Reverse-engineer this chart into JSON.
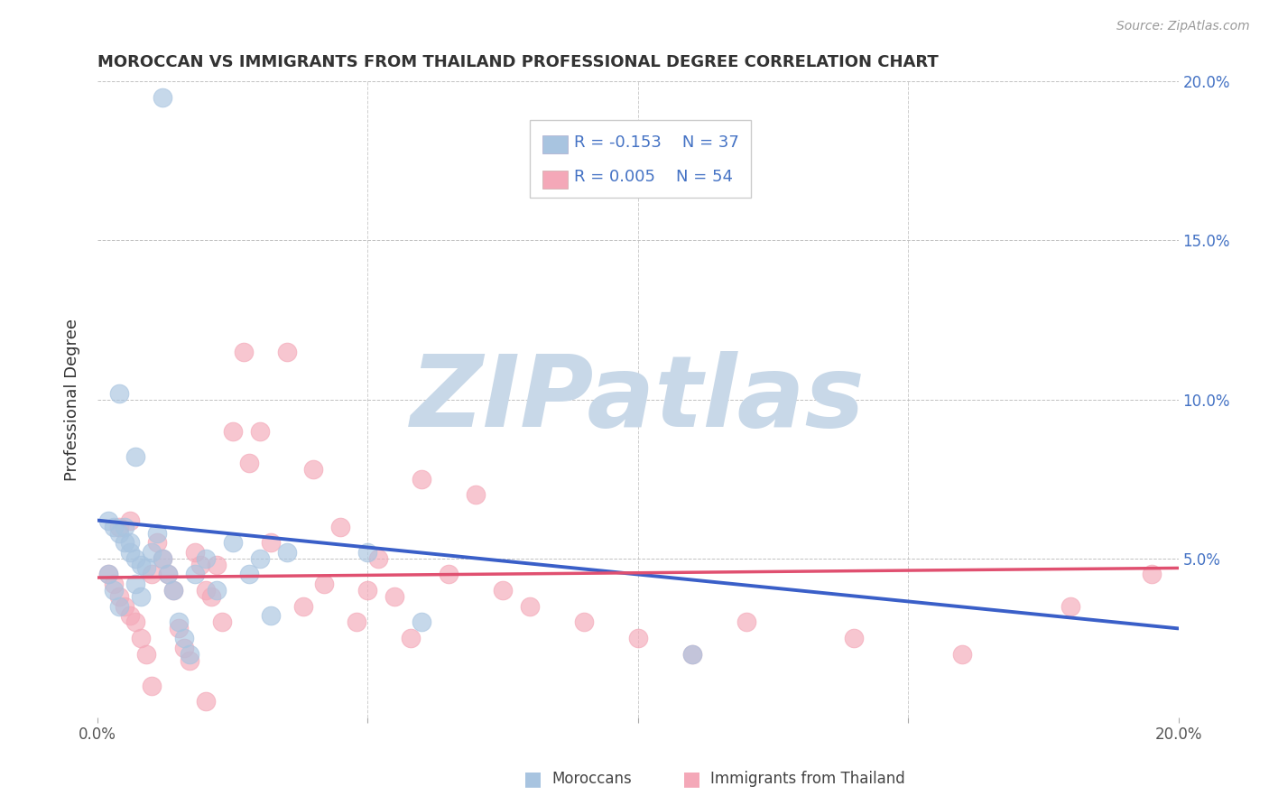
{
  "title": "MOROCCAN VS IMMIGRANTS FROM THAILAND PROFESSIONAL DEGREE CORRELATION CHART",
  "source": "Source: ZipAtlas.com",
  "ylabel": "Professional Degree",
  "xlim": [
    0,
    0.2
  ],
  "ylim": [
    0,
    0.2
  ],
  "xticks": [
    0.0,
    0.05,
    0.1,
    0.15,
    0.2
  ],
  "yticks": [
    0.0,
    0.05,
    0.1,
    0.15,
    0.2
  ],
  "xtick_labels_show": [
    "0.0%",
    "",
    "",
    "",
    "20.0%"
  ],
  "ytick_labels_right": [
    "",
    "5.0%",
    "10.0%",
    "15.0%",
    "20.0%"
  ],
  "moroccan_color": "#a8c4e0",
  "thailand_color": "#f4a8b8",
  "moroccan_R": -0.153,
  "moroccan_N": 37,
  "thailand_R": 0.005,
  "thailand_N": 54,
  "trend_blue_color": "#3a5fc8",
  "trend_pink_color": "#e05070",
  "trend_blue_x0": 0.0,
  "trend_blue_y0": 0.062,
  "trend_blue_x1": 0.2,
  "trend_blue_y1": 0.028,
  "trend_pink_x0": 0.0,
  "trend_pink_y0": 0.044,
  "trend_pink_x1": 0.2,
  "trend_pink_y1": 0.047,
  "watermark": "ZIPatlas",
  "watermark_color": "#c8d8e8",
  "moroccan_x": [
    0.002,
    0.003,
    0.004,
    0.005,
    0.006,
    0.007,
    0.008,
    0.009,
    0.01,
    0.011,
    0.012,
    0.013,
    0.014,
    0.015,
    0.016,
    0.017,
    0.018,
    0.02,
    0.022,
    0.025,
    0.028,
    0.03,
    0.032,
    0.035,
    0.002,
    0.003,
    0.004,
    0.005,
    0.006,
    0.007,
    0.008,
    0.05,
    0.06,
    0.11,
    0.004,
    0.007,
    0.012
  ],
  "moroccan_y": [
    0.062,
    0.06,
    0.058,
    0.055,
    0.052,
    0.05,
    0.048,
    0.047,
    0.052,
    0.058,
    0.05,
    0.045,
    0.04,
    0.03,
    0.025,
    0.02,
    0.045,
    0.05,
    0.04,
    0.055,
    0.045,
    0.05,
    0.032,
    0.052,
    0.045,
    0.04,
    0.035,
    0.06,
    0.055,
    0.042,
    0.038,
    0.052,
    0.03,
    0.02,
    0.102,
    0.082,
    0.195
  ],
  "thailand_x": [
    0.002,
    0.003,
    0.004,
    0.005,
    0.006,
    0.007,
    0.008,
    0.009,
    0.01,
    0.011,
    0.012,
    0.013,
    0.014,
    0.015,
    0.016,
    0.017,
    0.018,
    0.019,
    0.02,
    0.021,
    0.022,
    0.023,
    0.025,
    0.027,
    0.028,
    0.03,
    0.032,
    0.035,
    0.038,
    0.04,
    0.042,
    0.045,
    0.048,
    0.05,
    0.052,
    0.055,
    0.058,
    0.06,
    0.065,
    0.07,
    0.075,
    0.08,
    0.09,
    0.1,
    0.11,
    0.12,
    0.14,
    0.16,
    0.18,
    0.195,
    0.004,
    0.006,
    0.01,
    0.02
  ],
  "thailand_y": [
    0.045,
    0.042,
    0.038,
    0.035,
    0.032,
    0.03,
    0.025,
    0.02,
    0.045,
    0.055,
    0.05,
    0.045,
    0.04,
    0.028,
    0.022,
    0.018,
    0.052,
    0.048,
    0.04,
    0.038,
    0.048,
    0.03,
    0.09,
    0.115,
    0.08,
    0.09,
    0.055,
    0.115,
    0.035,
    0.078,
    0.042,
    0.06,
    0.03,
    0.04,
    0.05,
    0.038,
    0.025,
    0.075,
    0.045,
    0.07,
    0.04,
    0.035,
    0.03,
    0.025,
    0.02,
    0.03,
    0.025,
    0.02,
    0.035,
    0.045,
    0.06,
    0.062,
    0.01,
    0.005
  ]
}
